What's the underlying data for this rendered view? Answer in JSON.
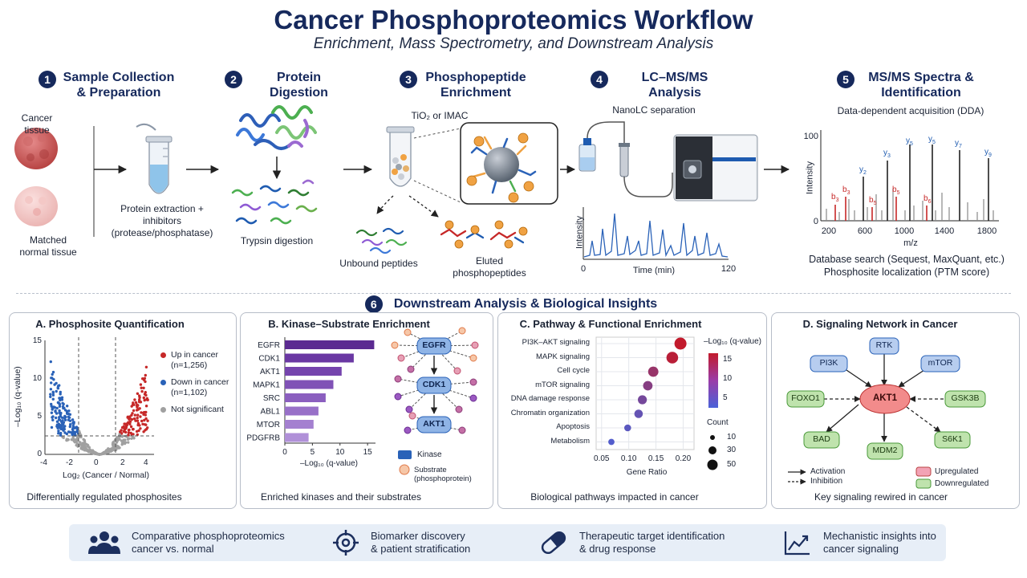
{
  "header": {
    "title": "Cancer Phosphoproteomics Workflow",
    "subtitle": "Enrichment, Mass Spectrometry, and Downstream Analysis"
  },
  "steps": [
    {
      "num": "1",
      "title": "Sample Collection & Preparation"
    },
    {
      "num": "2",
      "title": "Protein Digestion"
    },
    {
      "num": "3",
      "title": "Phosphopeptide Enrichment"
    },
    {
      "num": "4",
      "title": "LC–MS/MS Analysis"
    },
    {
      "num": "5",
      "title": "MS/MS Spectra & Identification"
    }
  ],
  "step1": {
    "cancer_label": "Cancer tissue",
    "normal_label": "Matched normal tissue",
    "extraction_label": "Protein extraction + inhibitors (protease/phosphatase)"
  },
  "step2": {
    "trypsin_label": "Trypsin digestion"
  },
  "step3": {
    "method_label": "TiO₂ or IMAC",
    "unbound_label": "Unbound peptides",
    "eluted_label": "Eluted phosphopeptides",
    "phospho_symbol": "P"
  },
  "step4": {
    "nanolc_label": "NanoLC separation",
    "y_label": "Intensity",
    "x_label": "Time (min)",
    "x_ticks": [
      "0",
      "120"
    ]
  },
  "step5": {
    "dda_label": "Data-dependent acquisition (DDA)",
    "y_label": "Intensity",
    "y_ticks": [
      "100",
      "0"
    ],
    "x_label": "m/z",
    "x_ticks": [
      "200",
      "600",
      "1000",
      "1400",
      "1800"
    ],
    "ions": [
      {
        "label": "b3",
        "base": "b",
        "sub": "3",
        "color": "#c62828"
      },
      {
        "label": "b3",
        "base": "b",
        "sub": "3",
        "color": "#c62828"
      },
      {
        "label": "y2",
        "base": "y",
        "sub": "2",
        "color": "#1e5bb0"
      },
      {
        "label": "b5",
        "base": "b",
        "sub": "5",
        "color": "#c62828"
      },
      {
        "label": "y3",
        "base": "y",
        "sub": "3",
        "color": "#1e5bb0"
      },
      {
        "label": "b5",
        "base": "b",
        "sub": "5",
        "color": "#c62828"
      },
      {
        "label": "y5",
        "base": "y",
        "sub": "5",
        "color": "#1e5bb0"
      },
      {
        "label": "y5",
        "base": "y",
        "sub": "5",
        "color": "#1e5bb0"
      },
      {
        "label": "b6",
        "base": "b",
        "sub": "6",
        "color": "#c62828"
      },
      {
        "label": "y7",
        "base": "y",
        "sub": "7",
        "color": "#1e5bb0"
      },
      {
        "label": "y9",
        "base": "y",
        "sub": "9",
        "color": "#1e5bb0"
      }
    ],
    "search_label": "Database search (Sequest, MaxQuant, etc.)",
    "localization_label": "Phosphosite localization (PTM score)"
  },
  "section6": {
    "num": "6",
    "title": "Downstream Analysis & Biological Insights"
  },
  "panelA": {
    "title": "A. Phosphosite Quantification",
    "y_label": "–Log₁₀ (q-value)",
    "y_ticks": [
      "15",
      "10",
      "5",
      "0"
    ],
    "x_label": "Log₂ (Cancer / Normal)",
    "x_ticks": [
      "-4",
      "-2",
      "0",
      "2",
      "4"
    ],
    "legend": [
      {
        "label": "Up in cancer",
        "n": "(n=1,256)",
        "color": "#c62828"
      },
      {
        "label": "Down in cancer",
        "n": "(n=1,102)",
        "color": "#2a62b8"
      },
      {
        "label": "Not significant",
        "n": "",
        "color": "#a0a0a0"
      }
    ],
    "caption": "Differentially regulated phosphosites"
  },
  "panelB": {
    "title": "B. Kinase–Substrate Enrichment",
    "x_label": "–Log₁₀ (q-value)",
    "x_ticks": [
      "0",
      "5",
      "10",
      "15"
    ],
    "network_nodes": [
      "EGFR",
      "CDK1",
      "AKT1"
    ],
    "legend_kinase": "Kinase",
    "legend_substrate": "Substrate (phosphoprotein)",
    "caption": "Enriched kinases and their substrates"
  },
  "panelC": {
    "title": "C. Pathway & Functional Enrichment",
    "x_label": "Gene Ratio",
    "x_ticks": [
      "0.05",
      "0.10",
      "0.15",
      "0.20"
    ],
    "color_legend_title": "–Log₁₀ (q-value)",
    "color_ticks": [
      "15",
      "10",
      "5"
    ],
    "size_legend_title": "Count",
    "size_ticks": [
      "10",
      "30",
      "50"
    ],
    "caption": "Biological pathways impacted in cancer"
  },
  "panelD": {
    "title": "D. Signaling Network in Cancer",
    "nodes": {
      "rtk": "RTK",
      "pi3k": "PI3K",
      "mtor": "mTOR",
      "akt1": "AKT1",
      "foxo1": "FOXO1",
      "gsk3b": "GSK3B",
      "bad": "BAD",
      "mdm2": "MDM2",
      "s6k1": "S6K1"
    },
    "legend_activation": "Activation",
    "legend_inhibition": "Inhibition",
    "legend_up": "Upregulated",
    "legend_down": "Downregulated",
    "caption": "Key signaling rewired in cancer"
  },
  "footer": [
    {
      "icon": "people-icon",
      "text1": "Comparative phosphoproteomics",
      "text2": "cancer vs. normal"
    },
    {
      "icon": "target-icon",
      "text1": "Biomarker discovery",
      "text2": "& patient stratification"
    },
    {
      "icon": "pill-icon",
      "text1": "Therapeutic target identification",
      "text2": "& drug response"
    },
    {
      "icon": "trend-icon",
      "text1": "Mechanistic insights into",
      "text2": "cancer signaling"
    }
  ],
  "chart_data": [
    {
      "type": "bar",
      "orientation": "horizontal",
      "title": "B. Kinase–Substrate Enrichment",
      "xlabel": "–Log₁₀ (q-value)",
      "xlim": [
        0,
        16
      ],
      "categories": [
        "EGFR",
        "CDK1",
        "AKT1",
        "MAPK1",
        "SRC",
        "ABL1",
        "MTOR",
        "PDGFRB"
      ],
      "values": [
        16.2,
        12.5,
        10.3,
        8.8,
        7.4,
        6.1,
        5.2,
        4.3
      ]
    },
    {
      "type": "scatter",
      "title": "C. Pathway & Functional Enrichment",
      "xlabel": "Gene Ratio",
      "xlim": [
        0.04,
        0.22
      ],
      "categories": [
        "PI3K–AKT signaling",
        "MAPK signaling",
        "Cell cycle",
        "mTOR signaling",
        "DNA damage response",
        "Chromatin organization",
        "Apoptosis",
        "Metabolism"
      ],
      "x": [
        0.195,
        0.18,
        0.145,
        0.135,
        0.125,
        0.118,
        0.098,
        0.068
      ],
      "neg_log10_q": [
        18,
        17,
        13,
        11,
        9,
        7,
        6,
        5
      ],
      "count": [
        50,
        48,
        40,
        36,
        33,
        30,
        22,
        18
      ]
    }
  ]
}
